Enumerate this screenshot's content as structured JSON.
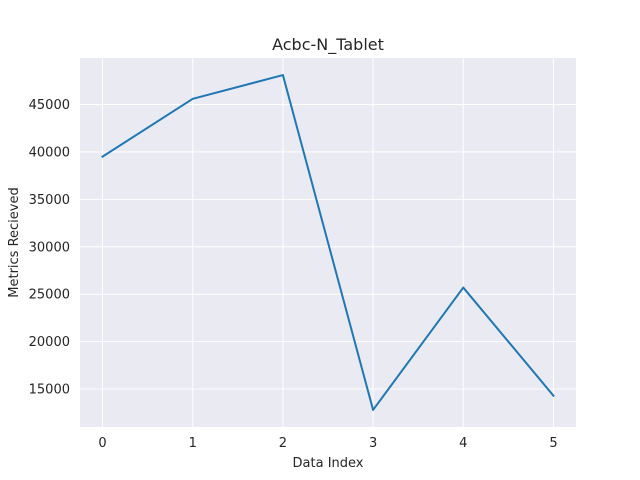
{
  "chart_data": {
    "type": "line",
    "title": "Acbc-N_Tablet",
    "xlabel": "Data Index",
    "ylabel": "Metrics Recieved",
    "x": [
      0,
      1,
      2,
      3,
      4,
      5
    ],
    "series": [
      {
        "values": [
          39500,
          45600,
          48100,
          12800,
          25700,
          14300
        ]
      }
    ],
    "xlim": [
      -0.25,
      5.25
    ],
    "ylim": [
      11000,
      49900
    ],
    "xticks": [
      0,
      1,
      2,
      3,
      4,
      5
    ],
    "yticks": [
      15000,
      20000,
      25000,
      30000,
      35000,
      40000,
      45000
    ],
    "grid": true,
    "colors": {
      "background": "#eaeaf2",
      "grid": "#ffffff",
      "line": "#1f77b4"
    }
  }
}
